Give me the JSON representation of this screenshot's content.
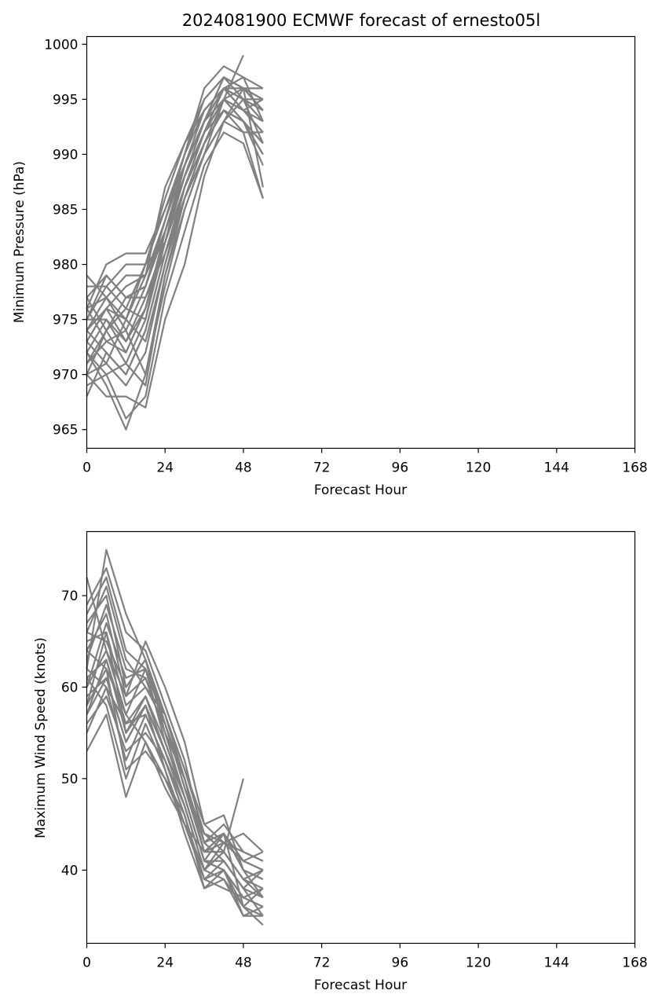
{
  "figure": {
    "title": "2024081900 ECMWF forecast of ernesto05l"
  },
  "chart_data": [
    {
      "type": "line",
      "title": "2024081900 ECMWF forecast of ernesto05l",
      "xlabel": "Forecast Hour",
      "ylabel": "Minimum Pressure (hPa)",
      "xlim": [
        0,
        168
      ],
      "ylim": [
        963.3,
        1000.7
      ],
      "xticks": [
        0,
        24,
        48,
        72,
        96,
        120,
        144,
        168
      ],
      "yticks": [
        965,
        970,
        975,
        980,
        985,
        990,
        995,
        1000
      ],
      "x": [
        0,
        6,
        12,
        18,
        24,
        30,
        36,
        42,
        48,
        54
      ],
      "line_color": "#808080",
      "grid": false,
      "series": [
        {
          "values": [
            975,
            978,
            976,
            980,
            982,
            988,
            993,
            997,
            995,
            991
          ]
        },
        {
          "values": [
            972,
            969,
            965,
            970,
            978,
            985,
            990,
            995,
            999,
            null
          ]
        },
        {
          "values": [
            970,
            968,
            968,
            967,
            975,
            980,
            988,
            993,
            996,
            987
          ]
        },
        {
          "values": [
            976,
            980,
            981,
            981,
            985,
            990,
            996,
            998,
            997,
            996
          ]
        },
        {
          "values": [
            977,
            974,
            971,
            975,
            983,
            989,
            994,
            996,
            994,
            992
          ]
        },
        {
          "values": [
            973,
            971,
            969,
            972,
            980,
            987,
            992,
            995,
            993,
            989
          ]
        },
        {
          "values": [
            968,
            972,
            970,
            974,
            981,
            986,
            991,
            994,
            992,
            986
          ]
        },
        {
          "values": [
            979,
            977,
            979,
            979,
            987,
            991,
            995,
            997,
            996,
            995
          ]
        },
        {
          "values": [
            974,
            976,
            973,
            977,
            982,
            989,
            993,
            996,
            995,
            994
          ]
        },
        {
          "values": [
            971,
            973,
            974,
            970,
            979,
            986,
            991,
            994,
            993,
            990
          ]
        },
        {
          "values": [
            975,
            979,
            977,
            978,
            984,
            990,
            994,
            996,
            995,
            993
          ]
        },
        {
          "values": [
            972,
            975,
            972,
            976,
            983,
            988,
            992,
            995,
            996,
            996
          ]
        },
        {
          "values": [
            969,
            970,
            966,
            968,
            977,
            983,
            989,
            992,
            991,
            986
          ]
        },
        {
          "values": [
            976,
            977,
            975,
            980,
            985,
            989,
            993,
            996,
            994,
            992
          ]
        },
        {
          "values": [
            973,
            976,
            978,
            979,
            983,
            988,
            992,
            994,
            993,
            991
          ]
        },
        {
          "values": [
            970,
            971,
            975,
            973,
            980,
            986,
            990,
            993,
            995,
            994
          ]
        },
        {
          "values": [
            977,
            979,
            977,
            978,
            984,
            990,
            995,
            997,
            996,
            994
          ]
        },
        {
          "values": [
            974,
            972,
            970,
            974,
            981,
            987,
            991,
            995,
            994,
            993
          ]
        },
        {
          "values": [
            971,
            974,
            976,
            975,
            982,
            987,
            992,
            996,
            995,
            995
          ]
        },
        {
          "values": [
            975,
            975,
            973,
            976,
            983,
            988,
            993,
            995,
            994,
            995
          ]
        },
        {
          "values": [
            978,
            978,
            980,
            980,
            986,
            991,
            994,
            996,
            997,
            993
          ]
        },
        {
          "values": [
            972,
            970,
            971,
            969,
            979,
            985,
            990,
            993,
            992,
            992
          ]
        },
        {
          "values": [
            974,
            977,
            974,
            978,
            983,
            989,
            993,
            995,
            993,
            990
          ]
        },
        {
          "values": [
            976,
            973,
            972,
            976,
            982,
            988,
            992,
            996,
            996,
            995
          ]
        },
        {
          "values": [
            970,
            974,
            977,
            977,
            981,
            986,
            991,
            994,
            993,
            991
          ]
        },
        {
          "values": [
            973,
            976,
            975,
            979,
            984,
            989,
            993,
            997,
            996,
            994
          ]
        }
      ]
    },
    {
      "type": "line",
      "title": "",
      "xlabel": "Forecast Hour",
      "ylabel": "Maximum Wind Speed (knots)",
      "xlim": [
        0,
        168
      ],
      "ylim": [
        32,
        77
      ],
      "xticks": [
        0,
        24,
        48,
        72,
        96,
        120,
        144,
        168
      ],
      "yticks": [
        40,
        50,
        60,
        70
      ],
      "x": [
        0,
        6,
        12,
        18,
        24,
        30,
        36,
        42,
        48,
        54
      ],
      "line_color": "#808080",
      "grid": false,
      "series": [
        {
          "values": [
            62,
            75,
            68,
            63,
            55,
            48,
            41,
            44,
            36,
            34
          ]
        },
        {
          "values": [
            72,
            64,
            59,
            65,
            60,
            54,
            45,
            46,
            40,
            37
          ]
        },
        {
          "values": [
            58,
            66,
            55,
            58,
            53,
            47,
            40,
            42,
            50,
            null
          ]
        },
        {
          "values": [
            66,
            71,
            63,
            60,
            57,
            50,
            43,
            41,
            38,
            35
          ]
        },
        {
          "values": [
            55,
            60,
            52,
            57,
            52,
            46,
            38,
            40,
            37,
            36
          ]
        },
        {
          "values": [
            64,
            62,
            57,
            54,
            50,
            45,
            42,
            43,
            41,
            42
          ]
        },
        {
          "values": [
            60,
            67,
            61,
            62,
            56,
            49,
            44,
            42,
            39,
            40
          ]
        },
        {
          "values": [
            69,
            73,
            66,
            64,
            58,
            52,
            43,
            45,
            42,
            41
          ]
        },
        {
          "values": [
            57,
            63,
            55,
            59,
            54,
            48,
            41,
            40,
            36,
            38
          ]
        },
        {
          "values": [
            61,
            58,
            50,
            56,
            51,
            45,
            39,
            41,
            38,
            37
          ]
        },
        {
          "values": [
            63,
            69,
            62,
            61,
            55,
            50,
            42,
            44,
            40,
            39
          ]
        },
        {
          "values": [
            59,
            61,
            54,
            58,
            53,
            47,
            40,
            39,
            36,
            35
          ]
        },
        {
          "values": [
            67,
            70,
            60,
            63,
            57,
            51,
            44,
            43,
            41,
            40
          ]
        },
        {
          "values": [
            56,
            59,
            53,
            55,
            52,
            46,
            39,
            40,
            35,
            36
          ]
        },
        {
          "values": [
            65,
            66,
            58,
            60,
            56,
            49,
            42,
            42,
            39,
            38
          ]
        },
        {
          "values": [
            60,
            64,
            57,
            62,
            54,
            48,
            41,
            41,
            38,
            40
          ]
        },
        {
          "values": [
            62,
            60,
            56,
            57,
            52,
            47,
            40,
            43,
            44,
            42
          ]
        },
        {
          "values": [
            58,
            62,
            51,
            53,
            50,
            46,
            39,
            38,
            37,
            36
          ]
        },
        {
          "values": [
            64,
            68,
            59,
            61,
            55,
            50,
            43,
            44,
            40,
            39
          ]
        },
        {
          "values": [
            53,
            57,
            48,
            54,
            49,
            45,
            40,
            42,
            39,
            37
          ]
        },
        {
          "values": [
            68,
            72,
            64,
            62,
            57,
            51,
            45,
            43,
            42,
            41
          ]
        },
        {
          "values": [
            61,
            63,
            56,
            59,
            53,
            48,
            41,
            40,
            37,
            38
          ]
        },
        {
          "values": [
            57,
            61,
            54,
            58,
            51,
            44,
            38,
            39,
            35,
            35
          ]
        },
        {
          "values": [
            66,
            65,
            60,
            63,
            56,
            50,
            42,
            44,
            41,
            40
          ]
        }
      ]
    }
  ]
}
